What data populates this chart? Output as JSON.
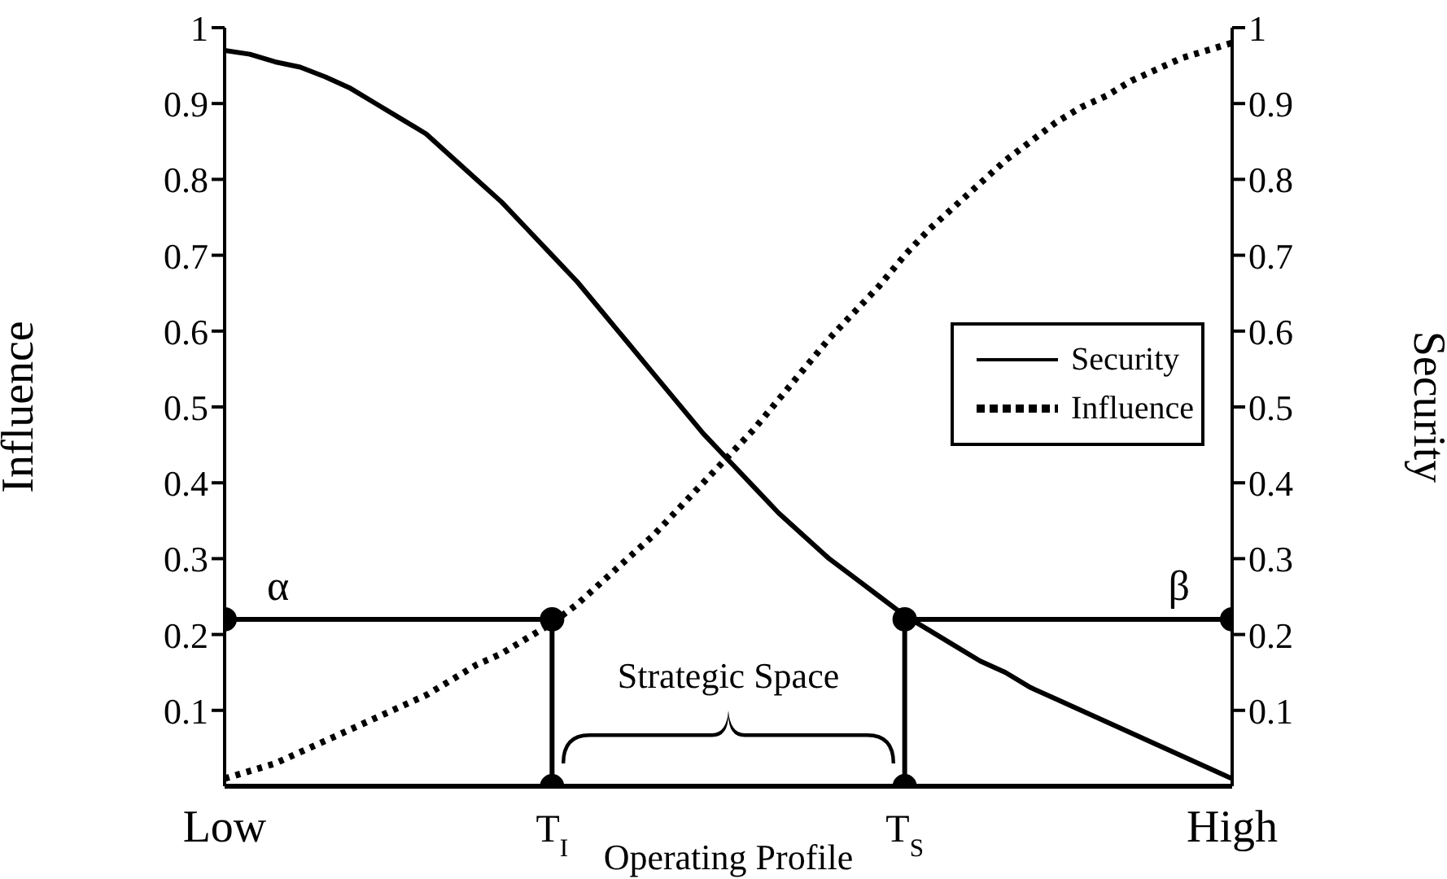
{
  "chart_data": {
    "type": "line",
    "xlabel": "Operating Profile",
    "ylabel": "Influence",
    "y2label": "Security",
    "categories": [
      "Low",
      null,
      null,
      null,
      null,
      null,
      null,
      null,
      null,
      null,
      null,
      null,
      null,
      "T$_{I}$",
      null,
      null,
      null,
      null,
      null,
      null,
      null,
      null,
      null,
      null,
      null,
      null,
      null,
      "T$_{S}$",
      null,
      null,
      null,
      null,
      null,
      null,
      null,
      null,
      null,
      null,
      null,
      null,
      "High"
    ],
    "ylim": [
      0,
      1
    ],
    "yticks": [
      0.1,
      0.2,
      0.3,
      0.4,
      0.5,
      0.6,
      0.7,
      0.8,
      0.9,
      1
    ],
    "y2lim": [
      0,
      1
    ],
    "y2ticks": [
      0.1,
      0.2,
      0.3,
      0.4,
      0.5,
      0.6,
      0.7,
      0.8,
      0.9,
      1
    ],
    "series": [
      {
        "name": "Security",
        "color": "#000000",
        "line_style": "solid",
        "marker": "none",
        "values": [
          0.97,
          0.965,
          0.955,
          0.948,
          0.935,
          0.92,
          0.9,
          0.88,
          0.86,
          0.83,
          0.8,
          0.77,
          0.735,
          0.7,
          0.665,
          0.625,
          0.585,
          0.545,
          0.505,
          0.465,
          0.43,
          0.395,
          0.36,
          0.33,
          0.3,
          0.275,
          0.25,
          0.225,
          0.205,
          0.185,
          0.165,
          0.15,
          0.13,
          0.115,
          0.1,
          0.085,
          0.07,
          0.055,
          0.04,
          0.025,
          0.01
        ]
      },
      {
        "name": "Influence",
        "color": "#000000",
        "line_style": "dotted",
        "marker": "none",
        "values": [
          0.01,
          0.02,
          0.03,
          0.045,
          0.06,
          0.075,
          0.09,
          0.105,
          0.12,
          0.14,
          0.16,
          0.175,
          0.195,
          0.215,
          0.24,
          0.27,
          0.3,
          0.33,
          0.365,
          0.4,
          0.435,
          0.47,
          0.51,
          0.55,
          0.59,
          0.625,
          0.66,
          0.7,
          0.735,
          0.765,
          0.795,
          0.825,
          0.85,
          0.875,
          0.895,
          0.91,
          0.93,
          0.945,
          0.96,
          0.97,
          0.98
        ]
      },
      {
        "name": "α",
        "color": "#000000",
        "line_style": "solid",
        "marker": "circle",
        "x": [
          "Low",
          "T$_{I}$",
          "T$_{I}$"
        ],
        "values": [
          0.22,
          0.22,
          0
        ]
      },
      {
        "name": "β",
        "color": "#000000",
        "line_style": "solid",
        "marker": "circle",
        "x": [
          "High",
          "T$_{S}$",
          "T$_{S}$"
        ],
        "values": [
          0.22,
          0.22,
          0
        ]
      }
    ],
    "legend": "right",
    "annotations": [
      "Strategic Space"
    ]
  }
}
